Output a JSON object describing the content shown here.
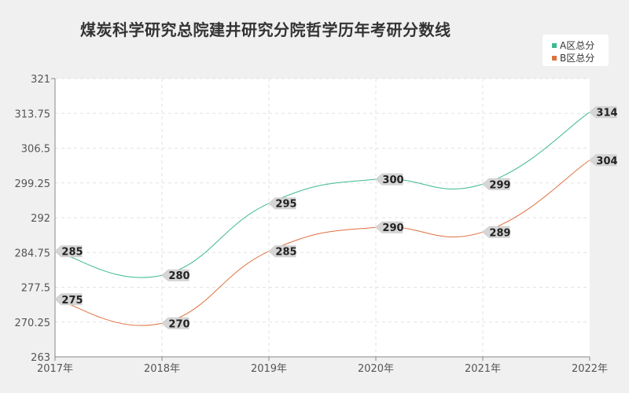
{
  "chart_data": {
    "type": "line",
    "title": "煤炭科学研究总院建井研究分院哲学历年考研分数线",
    "categories": [
      "2017年",
      "2018年",
      "2019年",
      "2020年",
      "2021年",
      "2022年"
    ],
    "series": [
      {
        "name": "A区总分",
        "color": "#3cba8f",
        "values": [
          285,
          280,
          295,
          300,
          299,
          314
        ]
      },
      {
        "name": "B区总分",
        "color": "#e0703f",
        "values": [
          275,
          270,
          285,
          290,
          289,
          304
        ]
      }
    ],
    "yticks": [
      "263",
      "270.25",
      "277.5",
      "284.75",
      "292",
      "299.25",
      "306.5",
      "313.75",
      "321"
    ],
    "ylim": [
      263,
      321
    ],
    "grid": true,
    "legend_position": "top-right"
  }
}
